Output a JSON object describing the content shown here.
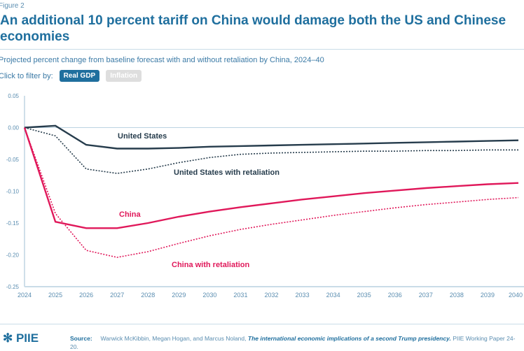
{
  "figure_label": "Figure 2",
  "title": "An additional 10 percent tariff on China would damage both the US and Chinese economies",
  "subtitle": "Projected percent change from baseline forecast with and without retaliation by China, 2024–40",
  "filter": {
    "label": "Click to filter by:",
    "options": [
      "Real GDP",
      "Inflation"
    ],
    "selected": "Real GDP"
  },
  "footer": {
    "logo": "PIIE",
    "source_label": "Source:",
    "source_authors": "Warwick McKibbin, Megan Hogan, and Marcus Noland,",
    "source_title": "The international economic implications of a second Trump presidency.",
    "source_rest": "PIIE Working Paper 24-20."
  },
  "chart_data": {
    "type": "line",
    "x": [
      2024,
      2025,
      2026,
      2027,
      2028,
      2029,
      2030,
      2031,
      2032,
      2033,
      2034,
      2035,
      2036,
      2037,
      2038,
      2039,
      2040
    ],
    "ylim": [
      -0.25,
      0.05
    ],
    "yticks": [
      "0.05",
      "0.00",
      "-0.05",
      "-0.10",
      "-0.15",
      "-0.20",
      "-0.25"
    ],
    "grid": false,
    "series": [
      {
        "name": "United States",
        "color": "#263c4c",
        "dash": false,
        "values": [
          0,
          0.003,
          -0.027,
          -0.033,
          -0.033,
          -0.032,
          -0.03,
          -0.029,
          -0.028,
          -0.027,
          -0.026,
          -0.025,
          -0.024,
          -0.023,
          -0.022,
          -0.021,
          -0.02
        ]
      },
      {
        "name": "United States with retaliation",
        "color": "#263c4c",
        "dash": true,
        "values": [
          0,
          -0.013,
          -0.065,
          -0.072,
          -0.065,
          -0.055,
          -0.047,
          -0.042,
          -0.04,
          -0.039,
          -0.038,
          -0.037,
          -0.037,
          -0.036,
          -0.036,
          -0.035,
          -0.035
        ]
      },
      {
        "name": "China",
        "color": "#e0185a",
        "dash": false,
        "values": [
          0,
          -0.148,
          -0.158,
          -0.158,
          -0.15,
          -0.14,
          -0.132,
          -0.125,
          -0.119,
          -0.113,
          -0.108,
          -0.103,
          -0.099,
          -0.095,
          -0.092,
          -0.089,
          -0.087
        ]
      },
      {
        "name": "China with retaliation",
        "color": "#e0185a",
        "dash": true,
        "values": [
          0,
          -0.135,
          -0.193,
          -0.204,
          -0.195,
          -0.182,
          -0.17,
          -0.16,
          -0.152,
          -0.145,
          -0.138,
          -0.132,
          -0.126,
          -0.121,
          -0.117,
          -0.113,
          -0.11
        ]
      }
    ]
  }
}
